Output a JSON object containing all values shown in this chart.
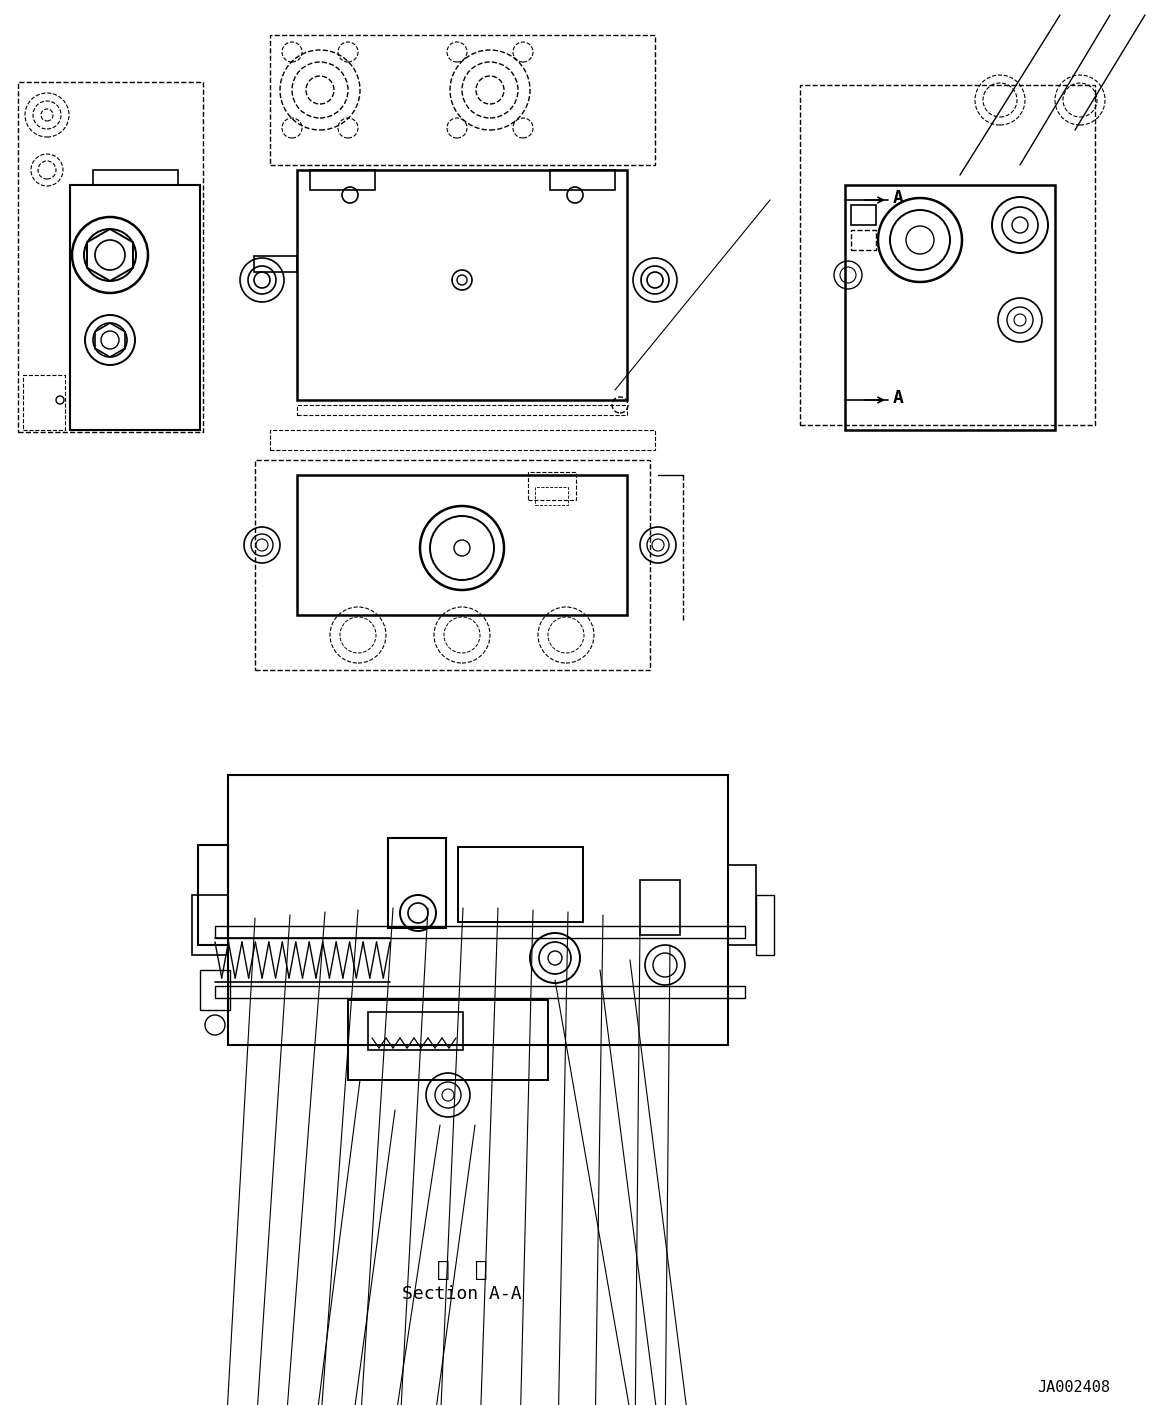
{
  "bg_color": "#ffffff",
  "line_color": "#000000",
  "dashed_color": "#000000",
  "text_section_chinese": "断  面",
  "text_section_english": "Section A-A",
  "text_ref": "JA002408",
  "text_A1": "A",
  "text_A2": "A",
  "figsize": [
    11.63,
    14.05
  ],
  "dpi": 100
}
